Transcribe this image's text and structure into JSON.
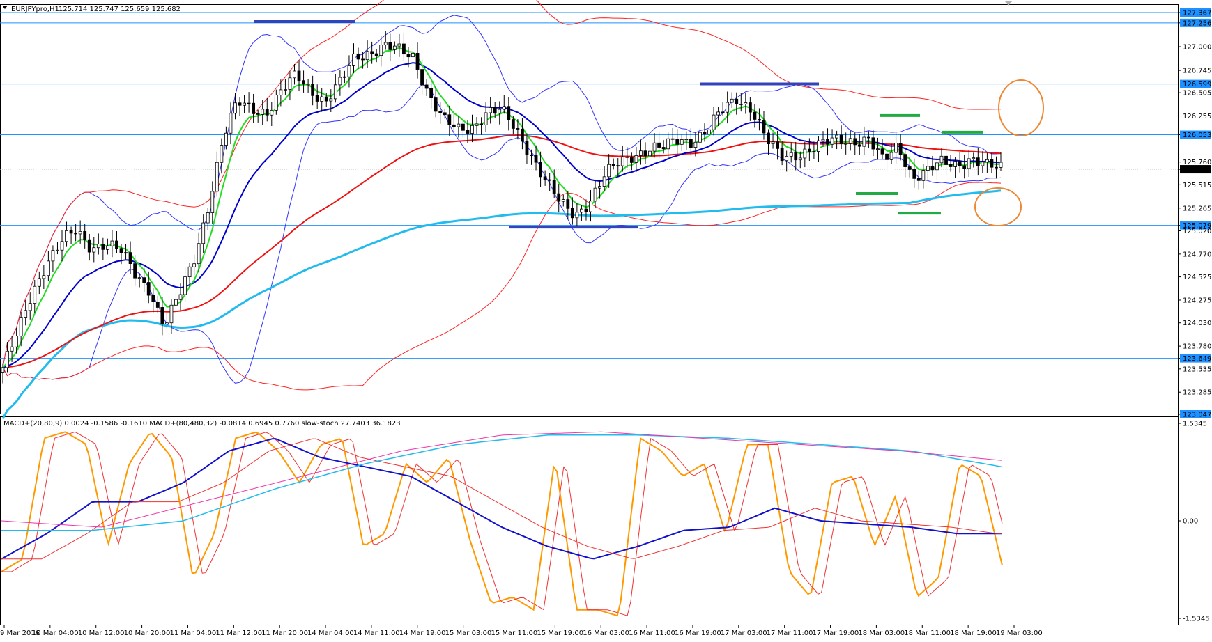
{
  "chart_data": [
    {
      "type": "line",
      "subtype": "candlestick",
      "title": "EURJPYpro,H1",
      "ohlc": "125.714 125.747 125.659 125.682",
      "y_ticks": [
        "127.367",
        "127.256",
        "127.000",
        "126.745",
        "126.599",
        "126.505",
        "126.255",
        "126.053",
        "125.760",
        "125.682",
        "125.515",
        "125.265",
        "125.079",
        "125.020",
        "124.770",
        "124.525",
        "124.275",
        "124.030",
        "123.780",
        "123.649",
        "123.535",
        "123.285",
        "123.047"
      ],
      "highlighted_ticks": [
        "127.367",
        "127.256",
        "126.599",
        "126.053",
        "125.682",
        "125.079",
        "123.649",
        "123.047"
      ],
      "ylim": [
        123.047,
        127.367
      ],
      "hlines": [
        127.367,
        127.256,
        126.599,
        126.053,
        125.079,
        123.649
      ],
      "current_price": 125.682,
      "x_ticks": [
        "9 Mar 2016",
        "10 Mar 04:00",
        "10 Mar 12:00",
        "10 Mar 20:00",
        "11 Mar 04:00",
        "11 Mar 12:00",
        "11 Mar 20:00",
        "14 Mar 04:00",
        "14 Mar 11:00",
        "14 Mar 19:00",
        "15 Mar 03:00",
        "15 Mar 11:00",
        "15 Mar 19:00",
        "16 Mar 03:00",
        "16 Mar 11:00",
        "16 Mar 19:00",
        "17 Mar 03:00",
        "17 Mar 11:00",
        "17 Mar 19:00",
        "18 Mar 03:00",
        "18 Mar 11:00",
        "18 Mar 19:00",
        "19 Mar 03:00"
      ],
      "close_path": [
        123.55,
        123.9,
        124.35,
        124.7,
        124.9,
        125.0,
        124.85,
        124.9,
        124.8,
        124.55,
        124.4,
        124.0,
        124.3,
        124.7,
        125.3,
        126.0,
        126.4,
        126.35,
        126.3,
        126.5,
        126.7,
        126.55,
        126.4,
        126.6,
        126.9,
        126.95,
        127.0,
        126.95,
        126.9,
        126.5,
        126.2,
        126.1,
        126.15,
        126.3,
        126.3,
        126.1,
        125.85,
        125.55,
        125.3,
        125.2,
        125.35,
        125.6,
        125.75,
        125.85,
        125.9,
        125.9,
        126.0,
        126.0,
        126.1,
        126.3,
        126.45,
        126.35,
        126.0,
        125.8,
        125.85,
        125.9,
        125.95,
        126.0,
        126.0,
        126.0,
        125.75,
        125.95,
        125.6,
        125.65,
        125.75,
        125.75,
        125.8,
        125.7,
        125.7
      ]
    },
    {
      "type": "line",
      "title": "MACD+(20,80,9) 0.0024 -0.1586 -0.1610 MACD+(80,480,32) -0.0814 0.6945 0.7760 slow-stoch 27.7403 36.1823",
      "y_ticks": [
        "1.5345",
        "0.00",
        "-1.5345"
      ],
      "ylim": [
        -1.5345,
        1.5345
      ],
      "stoch": [
        -0.8,
        -0.6,
        1.3,
        1.4,
        1.2,
        -0.4,
        0.9,
        1.4,
        1.0,
        -0.9,
        -0.2,
        1.3,
        1.4,
        1.1,
        0.6,
        1.2,
        1.3,
        -0.4,
        -0.2,
        0.9,
        0.6,
        1.0,
        -0.3,
        -1.3,
        -1.2,
        -1.4,
        1.0,
        -1.4,
        -1.4,
        -1.5,
        1.3,
        1.1,
        0.7,
        0.9,
        -0.2,
        1.2,
        1.2,
        -0.8,
        -1.2,
        0.6,
        0.7,
        -0.4,
        0.4,
        -1.2,
        -0.9,
        0.9,
        0.7,
        -0.7
      ]
    }
  ]
}
